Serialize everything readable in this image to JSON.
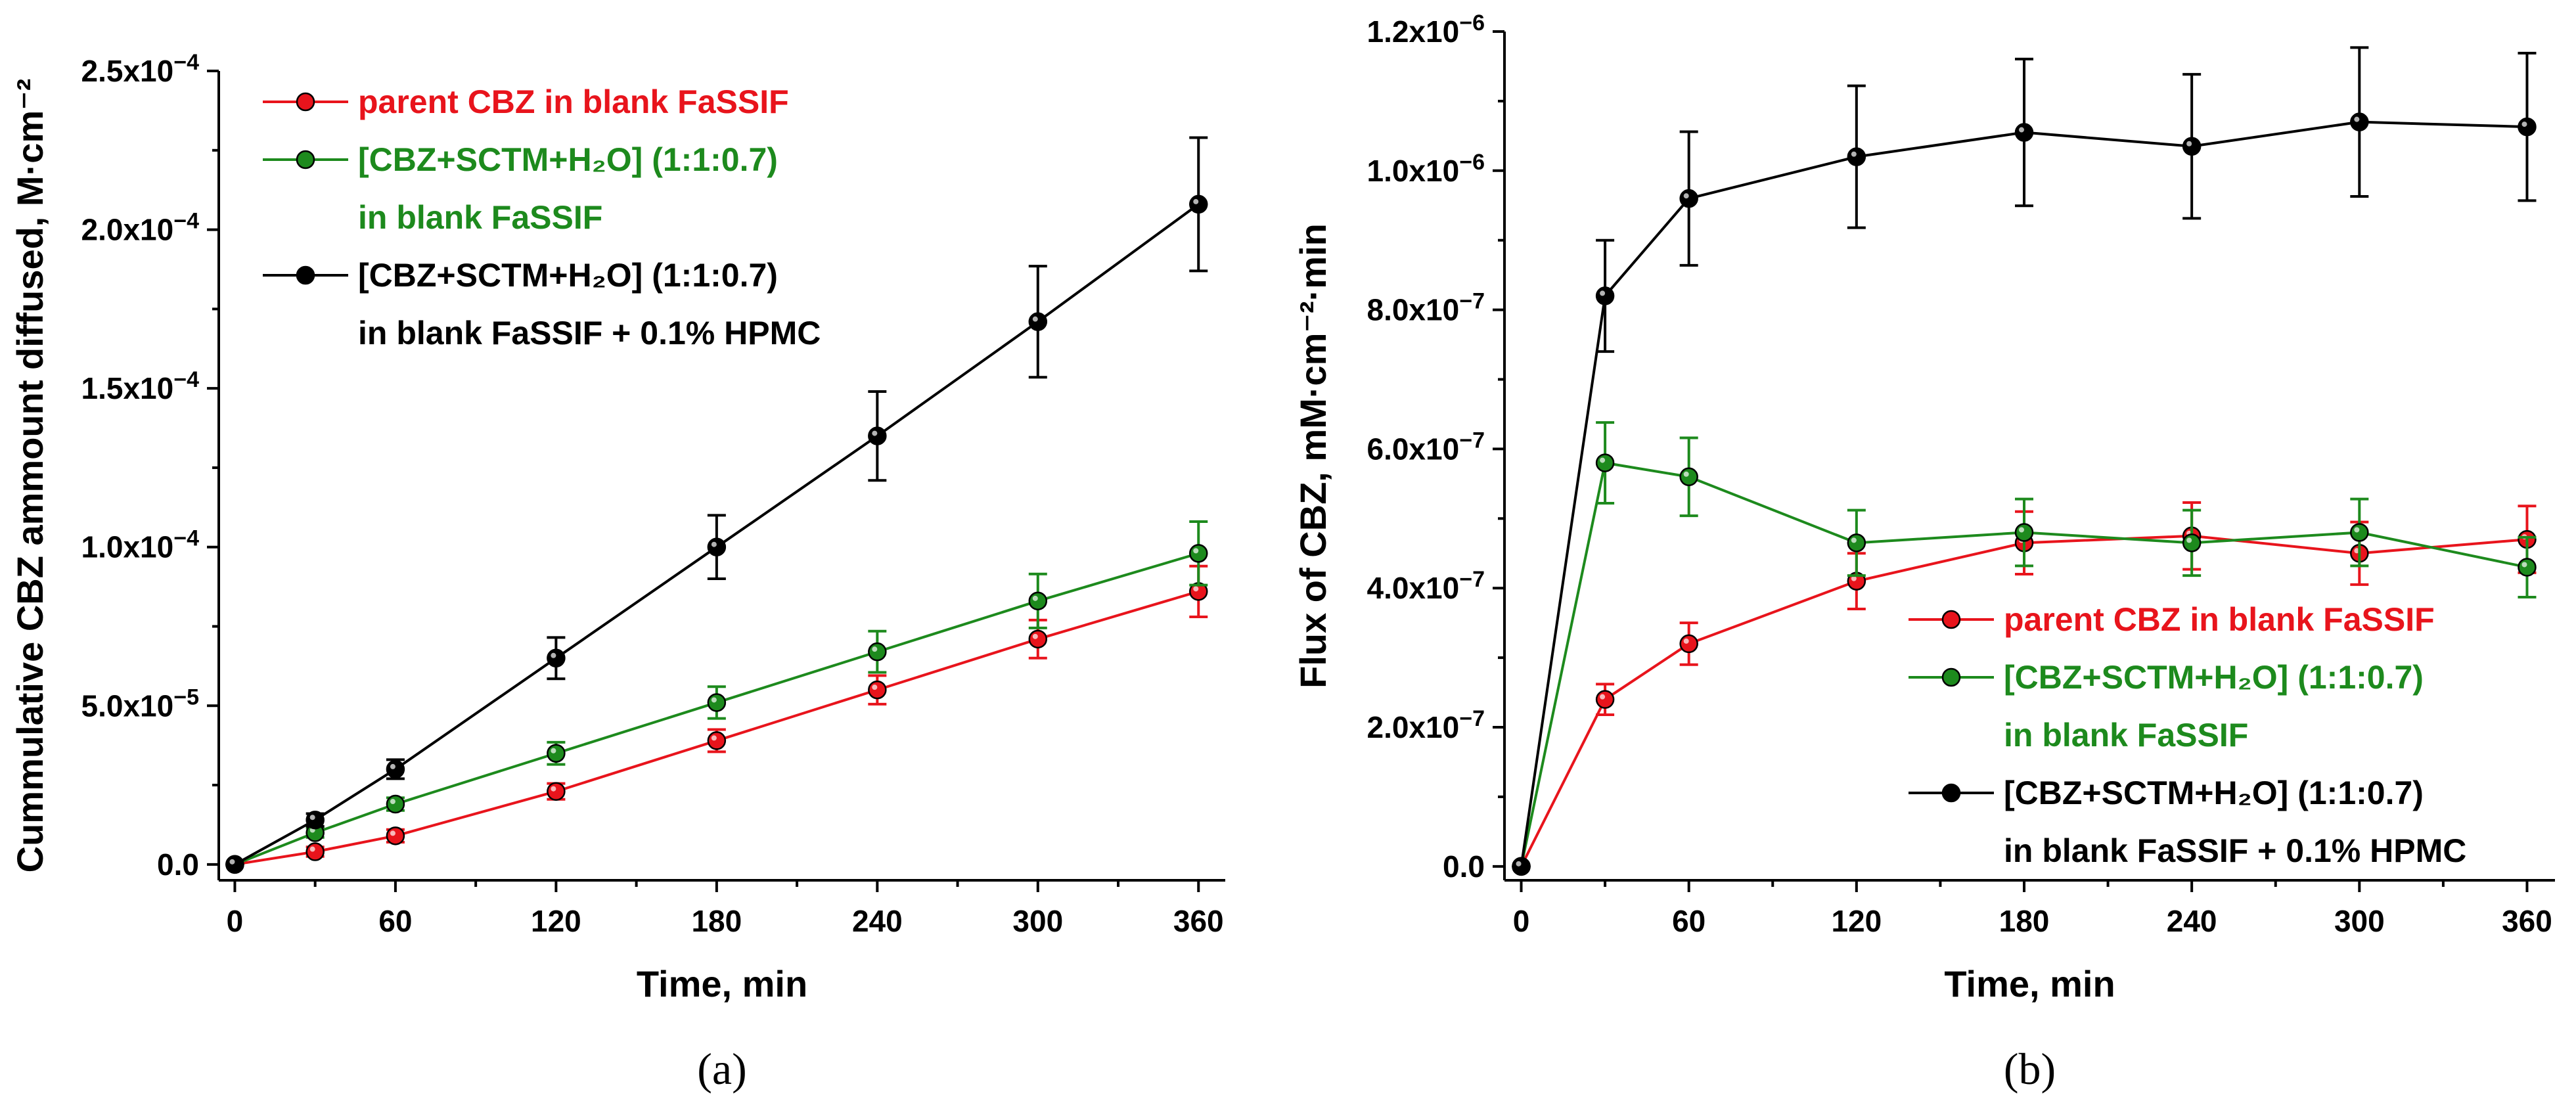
{
  "chart_data": [
    {
      "type": "line",
      "panel_label": "(a)",
      "xlabel": "Time, min",
      "ylabel": "Cummulative CBZ ammount diffused, M·cm⁻²",
      "xlim": [
        -6,
        370
      ],
      "ylim": [
        -5e-06,
        0.00025
      ],
      "xticks": [
        0,
        60,
        120,
        180,
        240,
        300,
        360
      ],
      "xtick_labels": [
        "0",
        "60",
        "120",
        "180",
        "240",
        "300",
        "360"
      ],
      "yticks": [
        0,
        5e-05,
        0.0001,
        0.00015,
        0.0002,
        0.00025
      ],
      "ytick_labels": [
        {
          "m": "0.0",
          "e": ""
        },
        {
          "m": "5.0x10",
          "e": "−5"
        },
        {
          "m": "1.0x10",
          "e": "−4"
        },
        {
          "m": "1.5x10",
          "e": "−4"
        },
        {
          "m": "2.0x10",
          "e": "−4"
        },
        {
          "m": "2.5x10",
          "e": "−4"
        }
      ],
      "legend_position": "top-left",
      "series": [
        {
          "name": "parent CBZ in blank FaSSIF",
          "legend_lines": [
            "parent CBZ in blank FaSSIF"
          ],
          "color": "#e8141c",
          "x": [
            0,
            30,
            60,
            120,
            180,
            240,
            300,
            360
          ],
          "y": [
            0,
            4e-06,
            9e-06,
            2.3e-05,
            3.9e-05,
            5.5e-05,
            7.1e-05,
            8.6e-05
          ],
          "err": [
            0,
            1.5e-06,
            2e-06,
            2.5e-06,
            3.5e-06,
            4.5e-06,
            6e-06,
            8e-06
          ]
        },
        {
          "name": "[CBZ+SCTM+H2O] (1:1:0.7) in blank FaSSIF",
          "legend_lines": [
            "[CBZ+SCTM+H₂O] (1:1:0.7)",
            "in blank FaSSIF"
          ],
          "color": "#1d8a1d",
          "x": [
            0,
            30,
            60,
            120,
            180,
            240,
            300,
            360
          ],
          "y": [
            0,
            1e-05,
            1.9e-05,
            3.5e-05,
            5.1e-05,
            6.7e-05,
            8.3e-05,
            9.8e-05
          ],
          "err": [
            0,
            1.5e-06,
            2e-06,
            3.5e-06,
            5e-06,
            6.5e-06,
            8.5e-06,
            1e-05
          ]
        },
        {
          "name": "[CBZ+SCTM+H2O] (1:1:0.7) in blank FaSSIF + 0.1% HPMC",
          "legend_lines": [
            "[CBZ+SCTM+H₂O] (1:1:0.7)",
            "in blank FaSSIF + 0.1% HPMC"
          ],
          "color": "#000000",
          "x": [
            0,
            30,
            60,
            120,
            180,
            240,
            300,
            360
          ],
          "y": [
            0,
            1.4e-05,
            3e-05,
            6.5e-05,
            0.0001,
            0.000135,
            0.000171,
            0.000208
          ],
          "err": [
            0,
            2e-06,
            3e-06,
            6.5e-06,
            1e-05,
            1.4e-05,
            1.75e-05,
            2.1e-05
          ]
        }
      ]
    },
    {
      "type": "line",
      "panel_label": "(b)",
      "xlabel": "Time, min",
      "ylabel": "Flux of CBZ, mM·cm⁻²·min",
      "xlim": [
        -6,
        370
      ],
      "ylim": [
        -2e-08,
        1.2e-06
      ],
      "xticks": [
        0,
        60,
        120,
        180,
        240,
        300,
        360
      ],
      "xtick_labels": [
        "0",
        "60",
        "120",
        "180",
        "240",
        "300",
        "360"
      ],
      "yticks": [
        0,
        2e-07,
        4e-07,
        6e-07,
        8e-07,
        1e-06,
        1.2e-06
      ],
      "ytick_labels": [
        {
          "m": "0.0",
          "e": ""
        },
        {
          "m": "2.0x10",
          "e": "−7"
        },
        {
          "m": "4.0x10",
          "e": "−7"
        },
        {
          "m": "6.0x10",
          "e": "−7"
        },
        {
          "m": "8.0x10",
          "e": "−7"
        },
        {
          "m": "1.0x10",
          "e": "−6"
        },
        {
          "m": "1.2x10",
          "e": "−6"
        }
      ],
      "legend_position": "bottom-right",
      "series": [
        {
          "name": "parent CBZ in blank FaSSIF",
          "legend_lines": [
            "parent CBZ in blank FaSSIF"
          ],
          "color": "#e8141c",
          "x": [
            0,
            30,
            60,
            120,
            180,
            240,
            300,
            360
          ],
          "y": [
            0,
            2.4e-07,
            3.2e-07,
            4.1e-07,
            4.65e-07,
            4.75e-07,
            4.5e-07,
            4.7e-07
          ],
          "err": [
            0,
            2.2e-08,
            3e-08,
            4e-08,
            4.5e-08,
            4.8e-08,
            4.5e-08,
            4.8e-08
          ]
        },
        {
          "name": "[CBZ+SCTM+H2O] (1:1:0.7) in blank FaSSIF",
          "legend_lines": [
            "[CBZ+SCTM+H₂O] (1:1:0.7)",
            "in blank FaSSIF"
          ],
          "color": "#1d8a1d",
          "x": [
            0,
            30,
            60,
            120,
            180,
            240,
            300,
            360
          ],
          "y": [
            0,
            5.8e-07,
            5.6e-07,
            4.65e-07,
            4.8e-07,
            4.65e-07,
            4.8e-07,
            4.3e-07
          ],
          "err": [
            0,
            5.8e-08,
            5.6e-08,
            4.7e-08,
            4.8e-08,
            4.7e-08,
            4.8e-08,
            4.3e-08
          ]
        },
        {
          "name": "[CBZ+SCTM+H2O] (1:1:0.7) in blank FaSSIF + 0.1% HPMC",
          "legend_lines": [
            "[CBZ+SCTM+H₂O] (1:1:0.7)",
            "in blank FaSSIF + 0.1% HPMC"
          ],
          "color": "#000000",
          "x": [
            0,
            30,
            60,
            120,
            180,
            240,
            300,
            360
          ],
          "y": [
            0,
            8.2e-07,
            9.6e-07,
            1.02e-06,
            1.055e-06,
            1.035e-06,
            1.07e-06,
            1.063e-06
          ],
          "err": [
            0,
            8e-08,
            9.6e-08,
            1.02e-07,
            1.055e-07,
            1.035e-07,
            1.07e-07,
            1.06e-07
          ]
        }
      ]
    }
  ]
}
